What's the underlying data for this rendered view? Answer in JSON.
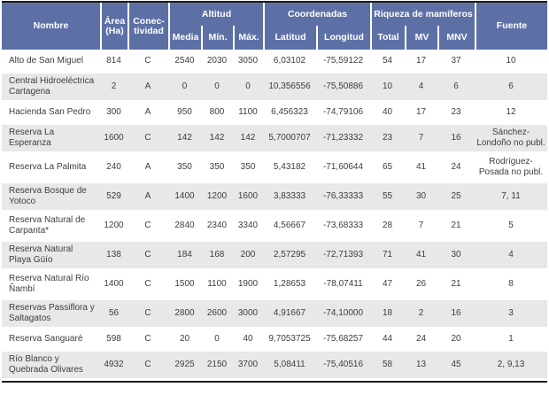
{
  "table": {
    "header": {
      "nombre": "Nombre",
      "area": "Área (Ha)",
      "conectividad": "Conec-tividad",
      "altitud_group": "Altitud",
      "media": "Media",
      "min": "Mín.",
      "max": "Máx.",
      "coordenadas_group": "Coordenadas",
      "latitud": "Latitud",
      "longitud": "Longitud",
      "riqueza_group": "Riqueza de mamíferos",
      "total": "Total",
      "mv": "MV",
      "mnv": "MNV",
      "fuente": "Fuente"
    },
    "rows": [
      {
        "name": "Alto de San Miguel",
        "area": "814",
        "conectividad": "C",
        "media": "2540",
        "min": "2030",
        "max": "3050",
        "latitud": "6,03102",
        "longitud": "-75,59122",
        "total": "54",
        "mv": "17",
        "mnv": "37",
        "fuente": "10"
      },
      {
        "name": "Central Hidroeléctrica Cartagena",
        "area": "2",
        "conectividad": "A",
        "media": "0",
        "min": "0",
        "max": "0",
        "latitud": "10,356556",
        "longitud": "-75,50886",
        "total": "10",
        "mv": "4",
        "mnv": "6",
        "fuente": "6"
      },
      {
        "name": "Hacienda San Pedro",
        "area": "300",
        "conectividad": "A",
        "media": "950",
        "min": "800",
        "max": "1100",
        "latitud": "6,456323",
        "longitud": "-74,79106",
        "total": "40",
        "mv": "17",
        "mnv": "23",
        "fuente": "12"
      },
      {
        "name": "Reserva La Esperanza",
        "area": "1600",
        "conectividad": "C",
        "media": "142",
        "min": "142",
        "max": "142",
        "latitud": "5,7000707",
        "longitud": "-71,23332",
        "total": "23",
        "mv": "7",
        "mnv": "16",
        "fuente": "Sánchez-Londoño no publ."
      },
      {
        "name": "Reserva La Palmita",
        "area": "240",
        "conectividad": "A",
        "media": "350",
        "min": "350",
        "max": "350",
        "latitud": "5,43182",
        "longitud": "-71,60644",
        "total": "65",
        "mv": "41",
        "mnv": "24",
        "fuente": "Rodríguez-Posada no publ."
      },
      {
        "name": "Reserva Bosque de Yotoco",
        "area": "529",
        "conectividad": "A",
        "media": "1400",
        "min": "1200",
        "max": "1600",
        "latitud": "3,83333",
        "longitud": "-76,33333",
        "total": "55",
        "mv": "30",
        "mnv": "25",
        "fuente": "7, 11"
      },
      {
        "name": "Reserva Natural de Carpanta*",
        "area": "1200",
        "conectividad": "C",
        "media": "2840",
        "min": "2340",
        "max": "3340",
        "latitud": "4,56667",
        "longitud": "-73,68333",
        "total": "28",
        "mv": "7",
        "mnv": "21",
        "fuente": "5"
      },
      {
        "name": "Reserva Natural Playa Güío",
        "area": "138",
        "conectividad": "C",
        "media": "184",
        "min": "168",
        "max": "200",
        "latitud": "2,57295",
        "longitud": "-72,71393",
        "total": "71",
        "mv": "41",
        "mnv": "30",
        "fuente": "4"
      },
      {
        "name": "Reserva Natural Río Ñambí",
        "area": "1400",
        "conectividad": "C",
        "media": "1500",
        "min": "1100",
        "max": "1900",
        "latitud": "1,28653",
        "longitud": "-78,07411",
        "total": "47",
        "mv": "26",
        "mnv": "21",
        "fuente": "8"
      },
      {
        "name": "Reservas Passiflora y Saltagatos",
        "area": "56",
        "conectividad": "C",
        "media": "2800",
        "min": "2600",
        "max": "3000",
        "latitud": "4,91667",
        "longitud": "-74,10000",
        "total": "18",
        "mv": "2",
        "mnv": "16",
        "fuente": "3"
      },
      {
        "name": "Reserva Sanguaré",
        "area": "598",
        "conectividad": "C",
        "media": "20",
        "min": "0",
        "max": "40",
        "latitud": "9,7053725",
        "longitud": "-75,68257",
        "total": "44",
        "mv": "24",
        "mnv": "20",
        "fuente": "1"
      },
      {
        "name": "Río Blanco y Quebrada Olivares",
        "area": "4932",
        "conectividad": "C",
        "media": "2925",
        "min": "2150",
        "max": "3700",
        "latitud": "5,08411",
        "longitud": "-75,40516",
        "total": "58",
        "mv": "13",
        "mnv": "45",
        "fuente": "2, 9,13"
      }
    ]
  },
  "colors": {
    "header_bg": "#5d70a6",
    "header_text": "#ffffff",
    "stripe_bg": "#e8e8e8",
    "body_text": "#3d3d3d",
    "frame_border": "#1b1b1b"
  }
}
